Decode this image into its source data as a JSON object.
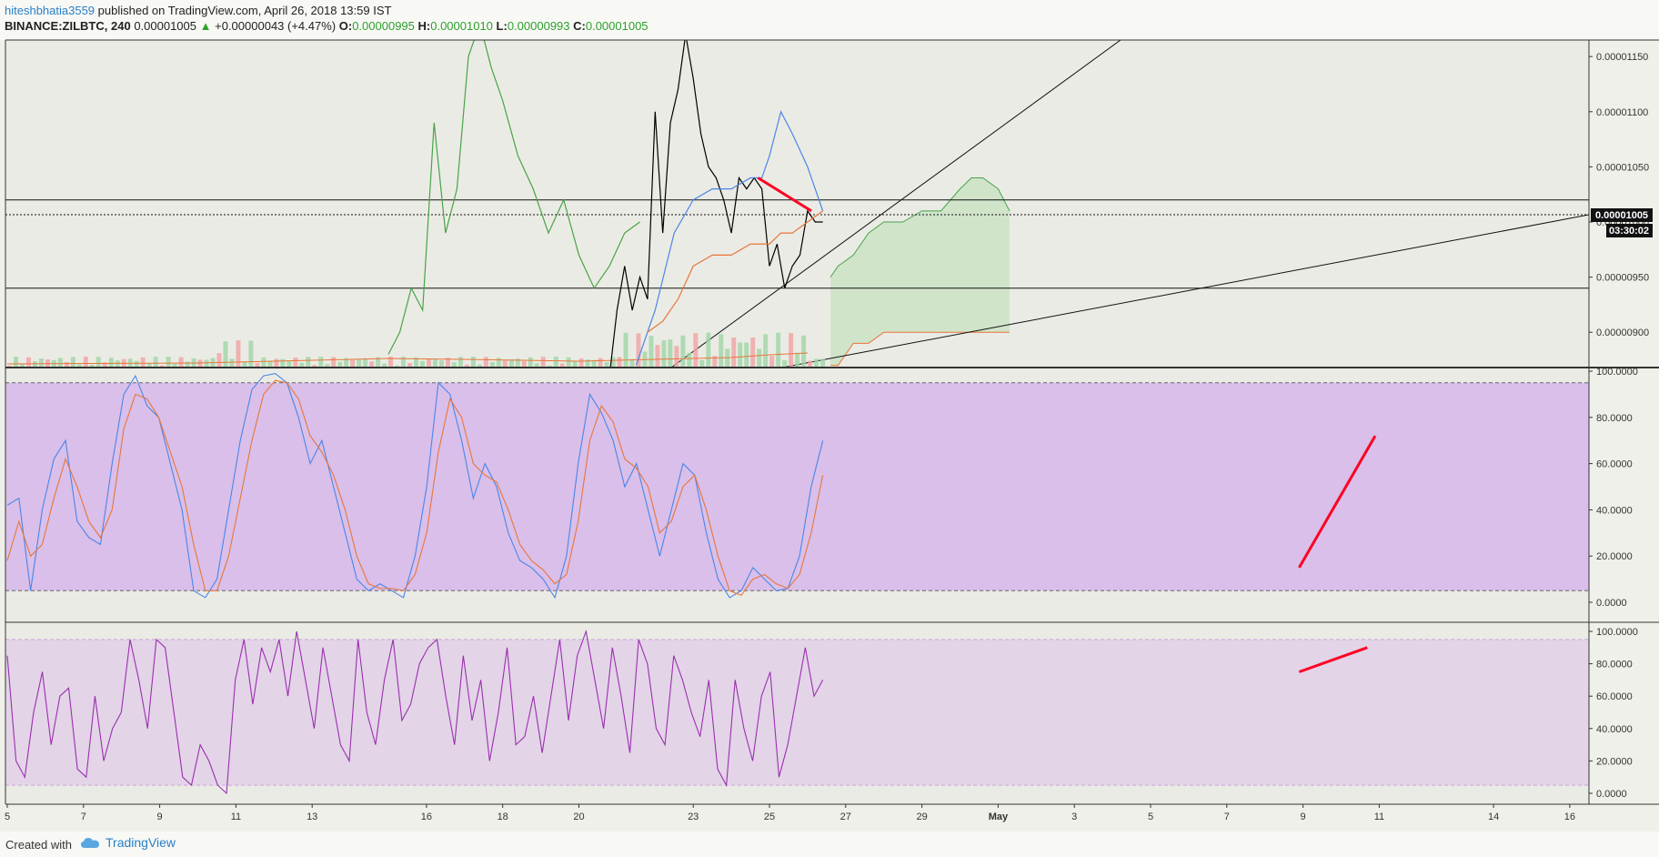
{
  "header": {
    "author": "hiteshbhatia3559",
    "published": " published on TradingView.com, April 26, 2018 13:59 IST",
    "symbol": "BINANCE:ZILBTC, 240",
    "last": "0.00001005",
    "change": "+0.00000043 (+4.47%)",
    "open_label": "O:",
    "open": "0.00000995",
    "high_label": "H:",
    "high": "0.00001010",
    "low_label": "L:",
    "low": "0.00000993",
    "close_label": "C:",
    "close": "0.00001005"
  },
  "price_badge": "0.00001005",
  "timer_badge": "03:30:02",
  "footer": {
    "created": "Created with",
    "brand": "TradingView"
  },
  "colors": {
    "price": "#000000",
    "blue": "#4a86e8",
    "orange": "#e8763a",
    "green": "#47a447",
    "red": "#ff0022",
    "purple": "#9b2fae",
    "band1": "#d9bfea",
    "band2": "#e3d4e8",
    "cloud": "#c9e2c3"
  },
  "chart_data": [
    {
      "type": "line",
      "panel": "price",
      "y_ticks": [
        "0.00001150",
        "0.00001100",
        "0.00001050",
        "0.00001000",
        "0.00000950",
        "0.00000900"
      ],
      "ylim": [
        8.68e-06,
        1.165e-05
      ],
      "x_ticks": [
        "5",
        "7",
        "9",
        "11",
        "13",
        "16",
        "18",
        "20",
        "23",
        "25",
        "27",
        "29",
        "May",
        "3",
        "5",
        "7",
        "9",
        "11",
        "14",
        "16"
      ],
      "series": [
        {
          "role": "price",
          "x": [
            20.8,
            21.0,
            21.2,
            21.4,
            21.6,
            21.8,
            22.0,
            22.2,
            22.4,
            22.6,
            22.8,
            23.0,
            23.2,
            23.4,
            23.6,
            23.8,
            24.0,
            24.2,
            24.4,
            24.6,
            24.8,
            25.0,
            25.2,
            25.4,
            25.6,
            25.8,
            26.0,
            26.2,
            26.4
          ],
          "y": [
            8.6e-06,
            9.2e-06,
            9.6e-06,
            9.2e-06,
            9.5e-06,
            9.3e-06,
            1.1e-05,
            9.9e-06,
            1.09e-05,
            1.12e-05,
            1.17e-05,
            1.13e-05,
            1.08e-05,
            1.05e-05,
            1.04e-05,
            1.02e-05,
            9.9e-06,
            1.04e-05,
            1.03e-05,
            1.04e-05,
            1.03e-05,
            9.6e-06,
            9.8e-06,
            9.4e-06,
            9.6e-06,
            9.7e-06,
            1.01e-05,
            1e-05,
            1e-05
          ]
        },
        {
          "role": "blue-line",
          "x": [
            21.5,
            22.0,
            22.5,
            23.0,
            23.5,
            24.0,
            24.5,
            24.8,
            25.0,
            25.3,
            25.6,
            26.0,
            26.4
          ],
          "y": [
            8.7e-06,
            9.2e-06,
            9.9e-06,
            1.02e-05,
            1.03e-05,
            1.03e-05,
            1.04e-05,
            1.04e-05,
            1.06e-05,
            1.1e-05,
            1.08e-05,
            1.05e-05,
            1.01e-05
          ]
        },
        {
          "role": "orange-line",
          "x": [
            21.8,
            22.2,
            22.6,
            23.0,
            23.5,
            24.0,
            24.5,
            25.0,
            25.3,
            25.6,
            26.0,
            26.4
          ],
          "y": [
            9e-06,
            9.1e-06,
            9.3e-06,
            9.6e-06,
            9.7e-06,
            9.7e-06,
            9.8e-06,
            9.8e-06,
            9.9e-06,
            9.9e-06,
            1e-05,
            1.01e-05
          ]
        },
        {
          "role": "green-lagging",
          "x": [
            15.0,
            15.3,
            15.6,
            15.9,
            16.2,
            16.5,
            16.8,
            17.1,
            17.4,
            17.7,
            18.0,
            18.4,
            18.8,
            19.2,
            19.6,
            20.0,
            20.4,
            20.8,
            21.2,
            21.6
          ],
          "y": [
            8.8e-06,
            9e-06,
            9.4e-06,
            9.2e-06,
            1.09e-05,
            9.9e-06,
            1.03e-05,
            1.15e-05,
            1.18e-05,
            1.14e-05,
            1.11e-05,
            1.06e-05,
            1.03e-05,
            9.9e-06,
            1.02e-05,
            9.7e-06,
            9.4e-06,
            9.6e-06,
            9.9e-06,
            1e-05
          ]
        }
      ],
      "cloud": {
        "x": [
          26.6,
          26.8,
          27.2,
          27.6,
          28.0,
          28.5,
          29.0,
          29.5,
          30.0,
          30.3,
          30.6,
          31.0,
          31.3
        ],
        "upper": [
          9.5e-06,
          9.6e-06,
          9.7e-06,
          9.9e-06,
          1e-05,
          1e-05,
          1.01e-05,
          1.01e-05,
          1.03e-05,
          1.04e-05,
          1.04e-05,
          1.03e-05,
          1.01e-05
        ],
        "lower": [
          8.7e-06,
          8.7e-06,
          8.9e-06,
          8.9e-06,
          9e-06,
          9e-06,
          9e-06,
          9e-06,
          9e-06,
          9e-06,
          9e-06,
          9e-06,
          9e-06
        ]
      },
      "horizontal_lines": [
        1.02e-05,
        9.4e-06
      ],
      "annotations": [
        {
          "x": [
            24.7,
            26.1
          ],
          "y": [
            1.04e-05,
            1.01e-05
          ],
          "color": "red"
        }
      ]
    },
    {
      "type": "line",
      "panel": "stoch",
      "y_ticks": [
        "100.0000",
        "80.0000",
        "60.0000",
        "40.0000",
        "20.0000",
        "0.0000"
      ],
      "ylim": [
        -4,
        100
      ],
      "band": [
        5,
        95
      ],
      "series": [
        {
          "role": "k",
          "values": [
            42,
            45,
            5,
            40,
            62,
            70,
            35,
            28,
            25,
            60,
            90,
            98,
            85,
            80,
            60,
            40,
            5,
            2,
            10,
            40,
            70,
            92,
            98,
            99,
            95,
            80,
            60,
            70,
            50,
            30,
            10,
            5,
            8,
            5,
            2,
            20,
            50,
            95,
            90,
            70,
            45,
            60,
            50,
            30,
            18,
            15,
            10,
            2,
            20,
            60,
            90,
            82,
            70,
            50,
            60,
            40,
            20,
            40,
            60,
            55,
            30,
            10,
            2,
            5,
            15,
            10,
            5,
            6,
            20,
            50,
            70
          ]
        },
        {
          "role": "d",
          "values": [
            18,
            35,
            20,
            25,
            45,
            62,
            50,
            35,
            28,
            40,
            75,
            90,
            88,
            80,
            65,
            50,
            25,
            5,
            5,
            20,
            45,
            70,
            90,
            96,
            95,
            88,
            72,
            65,
            55,
            40,
            20,
            8,
            6,
            6,
            5,
            12,
            30,
            65,
            88,
            80,
            60,
            55,
            52,
            40,
            25,
            18,
            14,
            8,
            12,
            35,
            70,
            85,
            78,
            62,
            58,
            50,
            30,
            35,
            50,
            55,
            40,
            20,
            5,
            3,
            10,
            12,
            8,
            6,
            12,
            30,
            55
          ]
        },
        {
          "role": "annotation",
          "x": [
            0.817,
            0.865
          ],
          "values": [
            15,
            72
          ],
          "color": "red"
        }
      ]
    },
    {
      "type": "line",
      "panel": "rsi",
      "y_ticks": [
        "100.0000",
        "80.0000",
        "60.0000",
        "40.0000",
        "20.0000",
        "0.0000"
      ],
      "ylim": [
        -4,
        102
      ],
      "band": [
        5,
        95
      ],
      "series": [
        {
          "role": "oscillator",
          "values": [
            85,
            20,
            10,
            50,
            75,
            30,
            60,
            65,
            15,
            10,
            60,
            20,
            40,
            50,
            95,
            70,
            40,
            95,
            90,
            50,
            10,
            5,
            30,
            20,
            5,
            0,
            70,
            95,
            55,
            90,
            75,
            95,
            60,
            100,
            70,
            40,
            90,
            60,
            30,
            20,
            95,
            50,
            30,
            70,
            95,
            45,
            55,
            80,
            90,
            95,
            60,
            30,
            85,
            45,
            70,
            20,
            50,
            90,
            30,
            35,
            60,
            25,
            60,
            95,
            45,
            85,
            100,
            70,
            40,
            90,
            60,
            25,
            95,
            80,
            40,
            30,
            85,
            70,
            50,
            35,
            70,
            15,
            5,
            70,
            40,
            20,
            60,
            75,
            10,
            30,
            60,
            90,
            60,
            70
          ]
        },
        {
          "role": "annotation",
          "x": [
            0.817,
            0.86
          ],
          "values": [
            75,
            90
          ],
          "color": "red"
        }
      ]
    }
  ]
}
